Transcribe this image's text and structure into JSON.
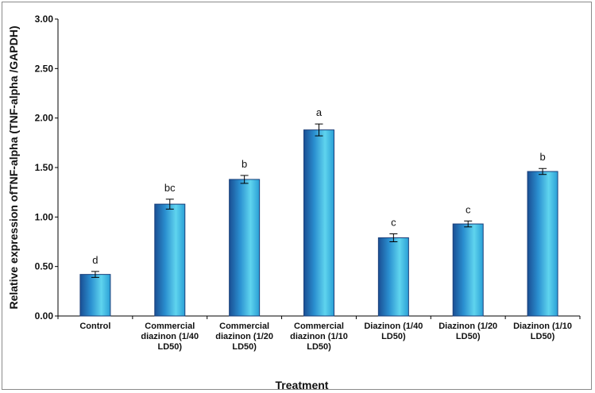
{
  "chart_data": {
    "type": "bar",
    "xlabel": "Treatment",
    "ylabel": "Relative expression ofTNF-alpha  (TNF-alpha /GAPDH)",
    "ylim": [
      0,
      3.0
    ],
    "yticks": [
      "0.00",
      "0.50",
      "1.00",
      "1.50",
      "2.00",
      "2.50",
      "3.00"
    ],
    "grid": false,
    "categories": [
      [
        "Control"
      ],
      [
        "Commercial",
        "diazinon (1/40",
        "LD50)"
      ],
      [
        "Commercial",
        "diazinon (1/20",
        "LD50)"
      ],
      [
        "Commercial",
        "diazinon (1/10",
        "LD50)"
      ],
      [
        "Diazinon (1/40",
        "LD50)"
      ],
      [
        "Diazinon (1/20",
        "LD50)"
      ],
      [
        "Diazinon (1/10",
        "LD50)"
      ]
    ],
    "values": [
      0.42,
      1.13,
      1.38,
      1.88,
      0.79,
      0.93,
      1.46
    ],
    "errors": [
      0.03,
      0.05,
      0.04,
      0.06,
      0.04,
      0.03,
      0.03
    ],
    "significance": [
      "d",
      "bc",
      "b",
      "a",
      "c",
      "c",
      "b"
    ],
    "bar_color": "#2a9fd6",
    "bar_dark": "#1a4f94",
    "bar_light": "#5fd4ee"
  }
}
